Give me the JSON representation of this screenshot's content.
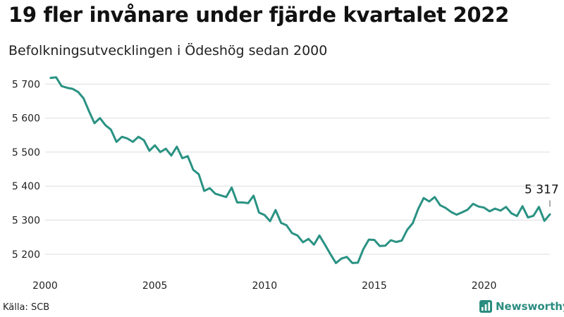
{
  "header": {
    "title": "19 fler invånare under fjärde kvartalet 2022",
    "subtitle": "Befolkningsutvecklingen i Ödeshög sedan 2000"
  },
  "footer": {
    "source": "Källa: SCB",
    "brand": "Newsworthy"
  },
  "colors": {
    "line": "#2a9283",
    "brand": "#2b8c80",
    "grid": "#dddddd"
  },
  "chart_data": {
    "type": "line",
    "title": "",
    "xlabel": "",
    "ylabel": "",
    "xlim": [
      2000,
      2023
    ],
    "ylim": [
      5150,
      5740
    ],
    "x_ticks": [
      {
        "value": 2000,
        "label": "2000"
      },
      {
        "value": 2005,
        "label": "2005"
      },
      {
        "value": 2010,
        "label": "2010"
      },
      {
        "value": 2015,
        "label": "2015"
      },
      {
        "value": 2020,
        "label": "2020"
      }
    ],
    "y_ticks": [
      {
        "value": 5200,
        "label": "5 200"
      },
      {
        "value": 5300,
        "label": "5 300"
      },
      {
        "value": 5400,
        "label": "5 400"
      },
      {
        "value": 5500,
        "label": "5 500"
      },
      {
        "value": 5600,
        "label": "5 600"
      },
      {
        "value": 5700,
        "label": "5 700"
      }
    ],
    "grid": true,
    "legend": "none",
    "last_value_label": "5 317",
    "x": [
      2000.25,
      2000.5,
      2000.75,
      2001.0,
      2001.25,
      2001.5,
      2001.75,
      2002.0,
      2002.25,
      2002.5,
      2002.75,
      2003.0,
      2003.25,
      2003.5,
      2003.75,
      2004.0,
      2004.25,
      2004.5,
      2004.75,
      2005.0,
      2005.25,
      2005.5,
      2005.75,
      2006.0,
      2006.25,
      2006.5,
      2006.75,
      2007.0,
      2007.25,
      2007.5,
      2007.75,
      2008.0,
      2008.25,
      2008.5,
      2008.75,
      2009.0,
      2009.25,
      2009.5,
      2009.75,
      2010.0,
      2010.25,
      2010.5,
      2010.75,
      2011.0,
      2011.25,
      2011.5,
      2011.75,
      2012.0,
      2012.25,
      2012.5,
      2012.75,
      2013.0,
      2013.25,
      2013.5,
      2013.75,
      2014.0,
      2014.25,
      2014.5,
      2014.75,
      2015.0,
      2015.25,
      2015.5,
      2015.75,
      2016.0,
      2016.25,
      2016.5,
      2016.75,
      2017.0,
      2017.25,
      2017.5,
      2017.75,
      2018.0,
      2018.25,
      2018.5,
      2018.75,
      2019.0,
      2019.25,
      2019.5,
      2019.75,
      2020.0,
      2020.25,
      2020.5,
      2020.75,
      2021.0,
      2021.25,
      2021.5,
      2021.75,
      2022.0,
      2022.25,
      2022.5,
      2022.75,
      2023.0
    ],
    "series": [
      {
        "values": [
          5718,
          5720,
          5694,
          5689,
          5686,
          5677,
          5658,
          5620,
          5585,
          5600,
          5579,
          5566,
          5530,
          5545,
          5540,
          5530,
          5545,
          5535,
          5504,
          5520,
          5500,
          5510,
          5490,
          5516,
          5482,
          5488,
          5448,
          5435,
          5386,
          5394,
          5378,
          5373,
          5368,
          5396,
          5352,
          5352,
          5350,
          5372,
          5322,
          5315,
          5297,
          5330,
          5292,
          5285,
          5262,
          5255,
          5235,
          5245,
          5228,
          5255,
          5228,
          5200,
          5174,
          5187,
          5192,
          5174,
          5175,
          5215,
          5243,
          5242,
          5224,
          5225,
          5241,
          5236,
          5240,
          5272,
          5291,
          5333,
          5365,
          5355,
          5368,
          5344,
          5336,
          5324,
          5316,
          5323,
          5331,
          5348,
          5340,
          5337,
          5326,
          5334,
          5328,
          5339,
          5320,
          5312,
          5341,
          5308,
          5313,
          5339,
          5298,
          5317
        ]
      }
    ]
  }
}
